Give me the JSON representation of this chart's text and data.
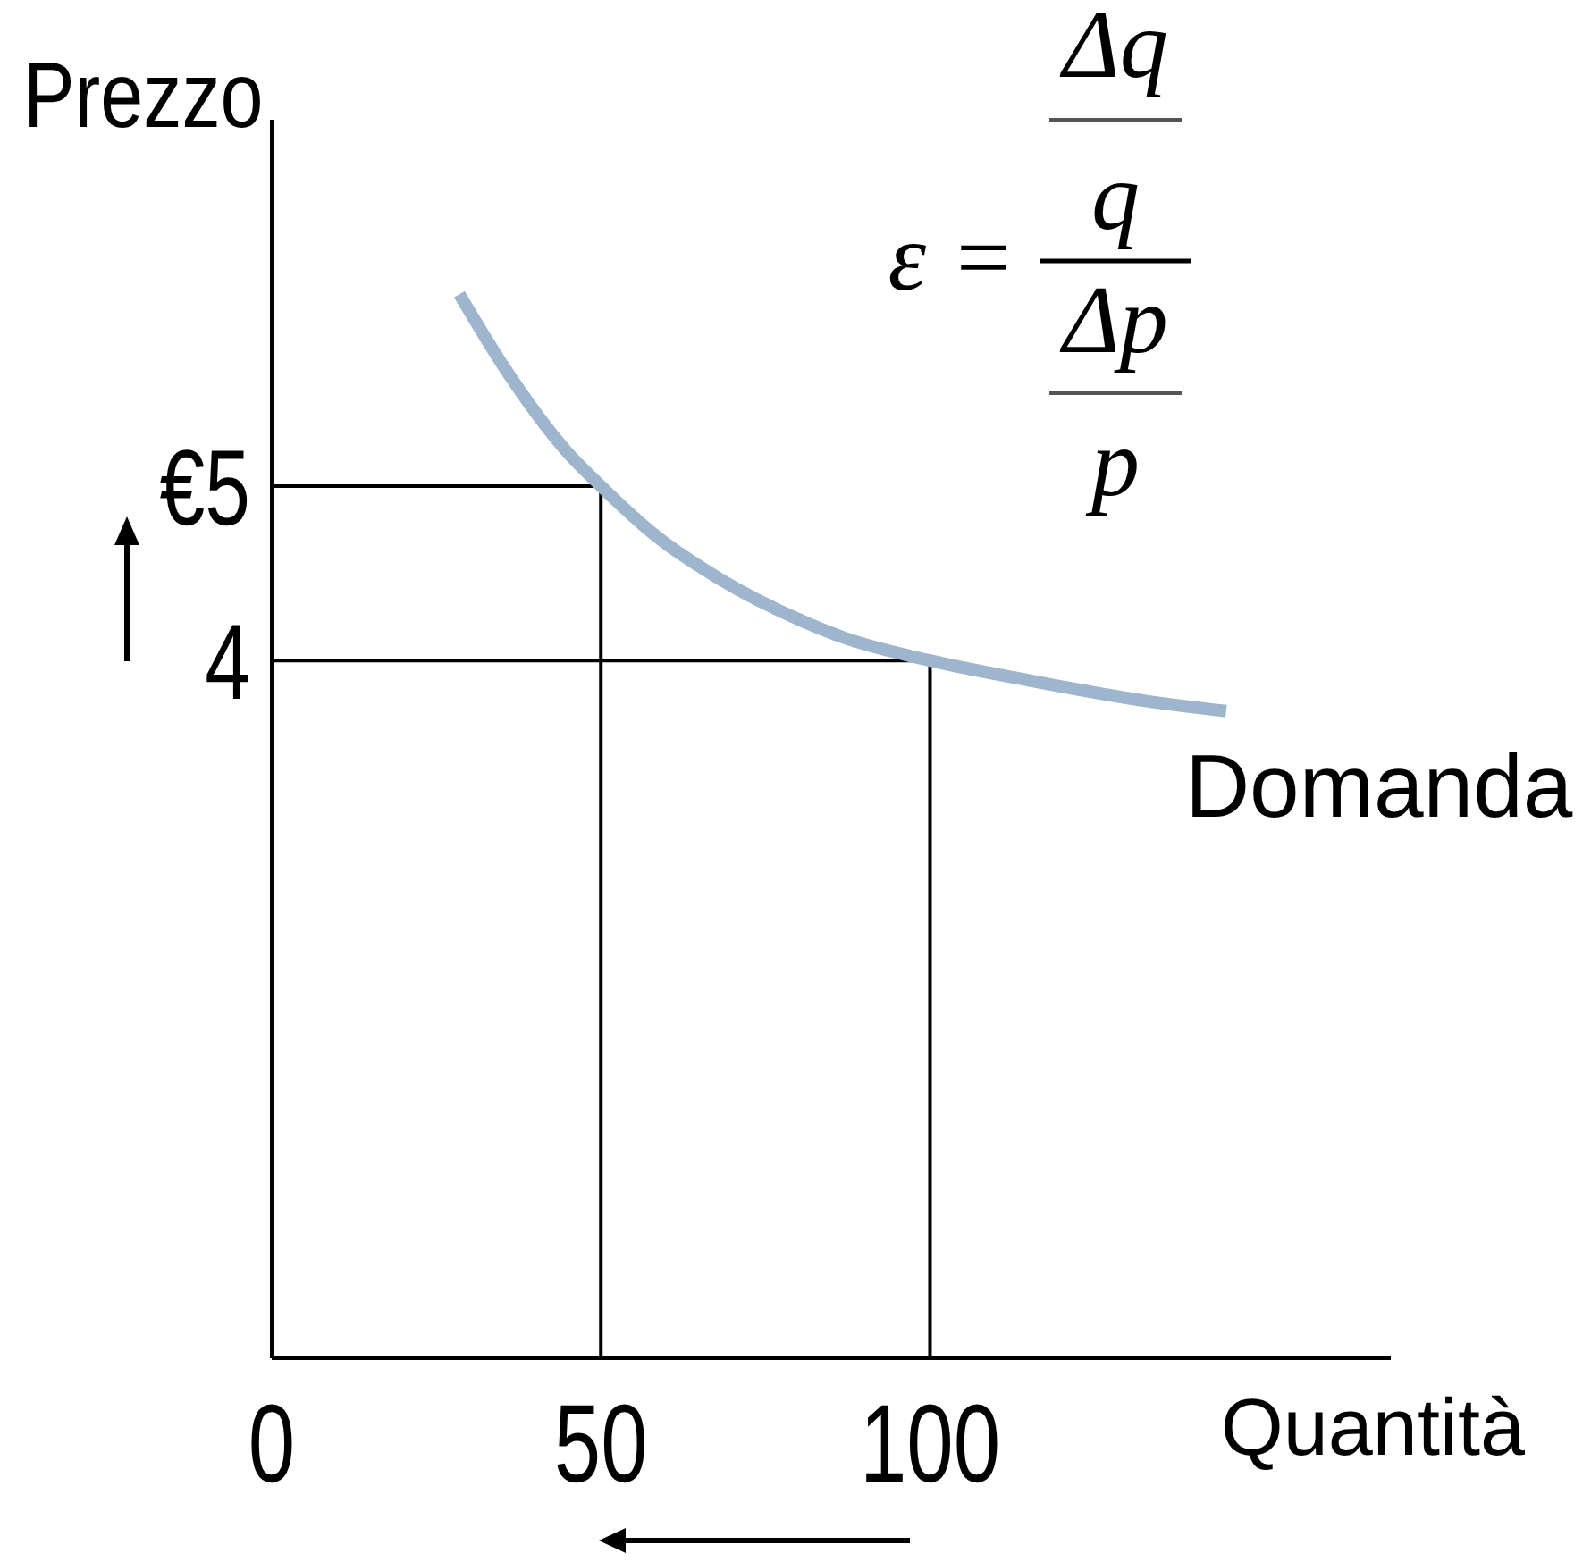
{
  "chart_data": {
    "type": "line",
    "xlabel": "Quantità",
    "ylabel": "Prezzo",
    "annotations": [
      "ε = Δq q Δp p"
    ],
    "x": [
      28.5,
      35.5,
      45,
      50,
      58.5,
      67.5,
      81,
      87,
      100,
      114.5,
      132.5,
      145
    ],
    "series": [
      {
        "name": "Domanda",
        "color": "#9db6cd",
        "values": [
          6.1,
          5.67,
          5.19,
          5,
          4.71,
          4.48,
          4.22,
          4.13,
          4,
          3.89,
          3.77,
          3.71
        ]
      }
    ],
    "xlim": [
      0,
      170
    ],
    "ylim": [
      0,
      7.1
    ],
    "xticks": [
      0,
      50,
      100
    ],
    "yticks": [
      4,
      {
        "value": 5,
        "label": "€5"
      }
    ],
    "ref_lines": [
      {
        "axis": "x",
        "value": 50,
        "color": "#000000"
      },
      {
        "axis": "x",
        "value": 100,
        "color": "#000000"
      },
      {
        "axis": "y",
        "value": 5,
        "color": "#000000"
      },
      {
        "axis": "y",
        "value": 4,
        "color": "#000000"
      }
    ]
  }
}
